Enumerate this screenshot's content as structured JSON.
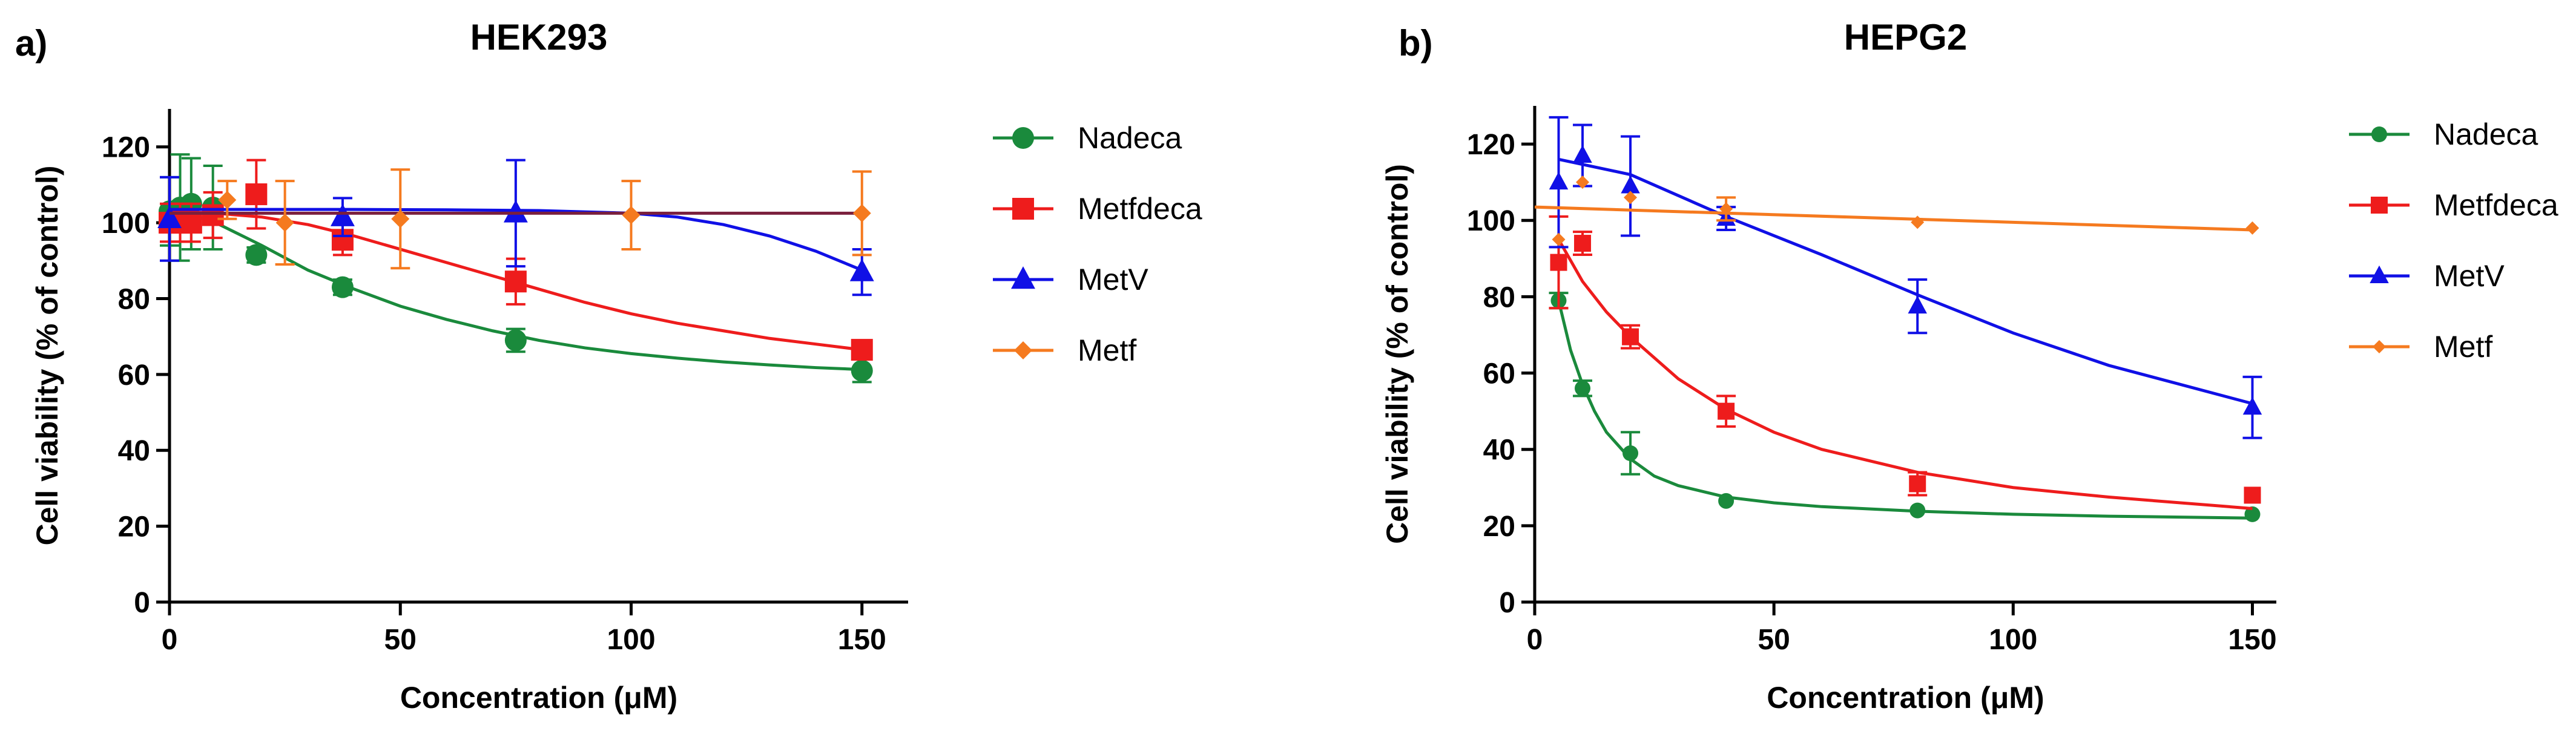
{
  "chart_data": [
    {
      "panel": "a)",
      "type": "scatter",
      "title": "HEK293",
      "xlabel": "Concentration (μM)",
      "ylabel": "Cell viability (% of control)",
      "xlim": [
        0,
        160
      ],
      "ylim": [
        0,
        130
      ],
      "xticks": [
        0,
        50,
        100,
        150
      ],
      "yticks": [
        0,
        20,
        40,
        60,
        80,
        100,
        120
      ],
      "legend_position": "right",
      "series": [
        {
          "name": "Nadeca",
          "color": "#1a8a3c",
          "marker": "circle",
          "x": [
            0,
            2.3,
            4.7,
            9.4,
            18.8,
            37.5,
            75,
            150
          ],
          "y": [
            103,
            104,
            105,
            104,
            91.5,
            83,
            69,
            61
          ],
          "err": [
            9,
            14,
            12,
            11,
            2,
            2,
            3,
            3
          ],
          "fit_x": [
            0,
            10,
            20,
            30,
            40,
            50,
            60,
            70,
            80,
            90,
            100,
            110,
            120,
            130,
            140,
            150
          ],
          "fit_y": [
            104,
            100,
            94,
            87.5,
            82.5,
            78,
            74.5,
            71.5,
            69,
            67,
            65.5,
            64.3,
            63.3,
            62.5,
            61.8,
            61.3
          ]
        },
        {
          "name": "Metfdeca",
          "color": "#ee1c1c",
          "marker": "square",
          "x": [
            0,
            2.3,
            4.7,
            9.4,
            18.8,
            37.5,
            75,
            150
          ],
          "y": [
            100,
            100,
            100,
            102,
            107.5,
            95.5,
            84.5,
            66.5
          ],
          "err": [
            5,
            5,
            5,
            6,
            9,
            4,
            6,
            2
          ],
          "fit_x": [
            0,
            10,
            20,
            30,
            40,
            50,
            60,
            70,
            80,
            90,
            100,
            110,
            120,
            130,
            140,
            150
          ],
          "fit_y": [
            103,
            102.5,
            101.5,
            99.5,
            96.5,
            93,
            89.5,
            86,
            82.5,
            79,
            76,
            73.5,
            71.5,
            69.5,
            68,
            66.5
          ]
        },
        {
          "name": "MetV",
          "color": "#1010e6",
          "marker": "triangle",
          "x": [
            0,
            37.5,
            75,
            150
          ],
          "y": [
            101,
            101.5,
            102.5,
            87
          ],
          "err": [
            11,
            5,
            14,
            6
          ],
          "fit_x": [
            0,
            20,
            40,
            60,
            80,
            100,
            110,
            120,
            130,
            140,
            150
          ],
          "fit_y": [
            103.5,
            103.5,
            103.5,
            103.4,
            103.2,
            102.5,
            101.5,
            99.5,
            96.5,
            92.5,
            87.5
          ]
        },
        {
          "name": "Metf",
          "color": "#f57a1f",
          "marker": "diamond",
          "x": [
            12.5,
            25,
            50,
            100,
            150
          ],
          "y": [
            106,
            100,
            101,
            102,
            102.5
          ],
          "err": [
            5,
            11,
            13,
            9,
            11
          ],
          "fit_x": [
            0,
            150
          ],
          "fit_y": [
            102.5,
            102.5
          ],
          "fit_color": "#7a1f3d"
        }
      ]
    },
    {
      "panel": "b)",
      "type": "scatter",
      "title": "HEPG2",
      "xlabel": "Concentration (μM)",
      "ylabel": "Cell viability (% of control)",
      "xlim": [
        0,
        155
      ],
      "ylim": [
        0,
        130
      ],
      "xticks": [
        0,
        50,
        100,
        150
      ],
      "yticks": [
        0,
        20,
        40,
        60,
        80,
        100,
        120
      ],
      "legend_position": "right",
      "series": [
        {
          "name": "Nadeca",
          "color": "#1a8a3c",
          "marker": "circle",
          "x": [
            5,
            10,
            20,
            40,
            80,
            150
          ],
          "y": [
            79,
            56,
            39,
            26.5,
            24,
            23
          ],
          "err": [
            2,
            2,
            5.5,
            0,
            0,
            0
          ],
          "fit_x": [
            5,
            7.5,
            10,
            12.5,
            15,
            20,
            25,
            30,
            40,
            50,
            60,
            80,
            100,
            120,
            150
          ],
          "fit_y": [
            79,
            66,
            57,
            50,
            44.5,
            37.5,
            33,
            30.5,
            27.5,
            26,
            25,
            23.8,
            23,
            22.5,
            22
          ]
        },
        {
          "name": "Metfdeca",
          "color": "#ee1c1c",
          "marker": "square",
          "x": [
            5,
            10,
            20,
            40,
            80,
            150
          ],
          "y": [
            89,
            94,
            69.5,
            50,
            31,
            28
          ],
          "err": [
            12,
            3,
            3,
            4,
            3,
            0
          ],
          "fit_x": [
            5,
            10,
            15,
            20,
            30,
            40,
            50,
            60,
            80,
            100,
            120,
            150
          ],
          "fit_y": [
            95,
            84,
            76,
            69.5,
            58.5,
            50.5,
            44.5,
            40,
            34,
            30,
            27.5,
            24.5
          ]
        },
        {
          "name": "MetV",
          "color": "#1010e6",
          "marker": "triangle",
          "x": [
            5,
            10,
            20,
            40,
            80,
            150
          ],
          "y": [
            110,
            117,
            109,
            100.5,
            77.5,
            51
          ],
          "err": [
            17,
            8,
            13,
            3,
            7,
            8
          ],
          "fit_x": [
            5,
            20,
            40,
            60,
            80,
            100,
            120,
            150
          ],
          "fit_y": [
            116,
            112,
            101,
            91,
            80.5,
            70.5,
            62,
            52
          ]
        },
        {
          "name": "Metf",
          "color": "#f57a1f",
          "marker": "diamond",
          "x": [
            5,
            10,
            20,
            40,
            80,
            150
          ],
          "y": [
            95,
            110,
            106,
            103,
            99.5,
            98
          ],
          "err": [
            0,
            0,
            0,
            3,
            0,
            0
          ],
          "fit_x": [
            0,
            150
          ],
          "fit_y": [
            103.5,
            97.5
          ]
        }
      ]
    }
  ]
}
